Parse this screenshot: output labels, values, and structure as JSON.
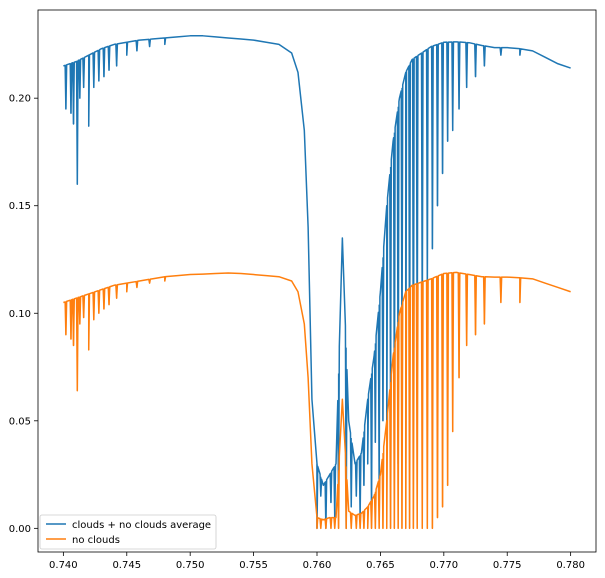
{
  "chart_data": {
    "type": "line",
    "title": "",
    "xlabel": "",
    "ylabel": "",
    "xlim": [
      0.738,
      0.782
    ],
    "ylim": [
      -0.011,
      0.241
    ],
    "xticks": [
      {
        "value": 0.74,
        "label": "0.740"
      },
      {
        "value": 0.745,
        "label": "0.745"
      },
      {
        "value": 0.75,
        "label": "0.750"
      },
      {
        "value": 0.755,
        "label": "0.755"
      },
      {
        "value": 0.76,
        "label": "0.760"
      },
      {
        "value": 0.765,
        "label": "0.765"
      },
      {
        "value": 0.77,
        "label": "0.770"
      },
      {
        "value": 0.775,
        "label": "0.775"
      },
      {
        "value": 0.78,
        "label": "0.780"
      }
    ],
    "yticks": [
      {
        "value": 0.0,
        "label": "0.00"
      },
      {
        "value": 0.05,
        "label": "0.05"
      },
      {
        "value": 0.1,
        "label": "0.10"
      },
      {
        "value": 0.15,
        "label": "0.15"
      },
      {
        "value": 0.2,
        "label": "0.20"
      }
    ],
    "grid": false,
    "legend_position": "lower-left",
    "series": [
      {
        "name": "clouds + no clouds average",
        "color": "#1f77b4",
        "x": [
          0.74,
          0.741,
          0.742,
          0.743,
          0.744,
          0.745,
          0.746,
          0.747,
          0.748,
          0.749,
          0.75,
          0.751,
          0.752,
          0.753,
          0.754,
          0.755,
          0.756,
          0.757,
          0.758,
          0.7585,
          0.759,
          0.7593,
          0.7596,
          0.76,
          0.7605,
          0.761,
          0.7615,
          0.762,
          0.7625,
          0.763,
          0.7635,
          0.764,
          0.7645,
          0.765,
          0.7655,
          0.766,
          0.7665,
          0.767,
          0.7675,
          0.768,
          0.7685,
          0.769,
          0.77,
          0.771,
          0.772,
          0.773,
          0.774,
          0.775,
          0.776,
          0.777,
          0.778,
          0.779,
          0.78
        ],
        "y": [
          0.215,
          0.217,
          0.22,
          0.223,
          0.225,
          0.226,
          0.227,
          0.2275,
          0.228,
          0.2285,
          0.229,
          0.229,
          0.2285,
          0.228,
          0.2275,
          0.227,
          0.226,
          0.225,
          0.221,
          0.212,
          0.185,
          0.14,
          0.06,
          0.03,
          0.02,
          0.025,
          0.03,
          0.135,
          0.05,
          0.03,
          0.035,
          0.06,
          0.08,
          0.11,
          0.15,
          0.18,
          0.2,
          0.212,
          0.218,
          0.22,
          0.222,
          0.224,
          0.226,
          0.2262,
          0.2258,
          0.2245,
          0.2235,
          0.2235,
          0.223,
          0.222,
          0.219,
          0.216,
          0.214
        ],
        "dips_x": [
          0.7402,
          0.7406,
          0.7408,
          0.7411,
          0.7413,
          0.7416,
          0.742,
          0.7424,
          0.7428,
          0.7432,
          0.7436,
          0.7442,
          0.745,
          0.7458,
          0.7468,
          0.748,
          0.76,
          0.7603,
          0.7607,
          0.7611,
          0.7614,
          0.7617,
          0.7623,
          0.7627,
          0.7631,
          0.7634,
          0.7637,
          0.764,
          0.7643,
          0.7646,
          0.7649,
          0.7652,
          0.7655,
          0.7658,
          0.7661,
          0.7664,
          0.7667,
          0.767,
          0.7673,
          0.7676,
          0.7679,
          0.7683,
          0.7687,
          0.7691,
          0.7695,
          0.7699,
          0.7703,
          0.7707,
          0.7712,
          0.7718,
          0.7725,
          0.7732,
          0.7745,
          0.776
        ],
        "dips_y": [
          0.195,
          0.193,
          0.188,
          0.16,
          0.2,
          0.205,
          0.187,
          0.205,
          0.208,
          0.21,
          0.213,
          0.215,
          0.22,
          0.222,
          0.224,
          0.225,
          0.0,
          0.015,
          0.0,
          0.012,
          0.005,
          0.01,
          0.0,
          0.01,
          0.015,
          0.005,
          0.02,
          0.03,
          0.01,
          0.04,
          0.02,
          0.05,
          0.02,
          0.06,
          0.05,
          0.03,
          0.08,
          0.03,
          0.06,
          0.05,
          0.07,
          0.09,
          0.11,
          0.13,
          0.15,
          0.165,
          0.18,
          0.185,
          0.195,
          0.205,
          0.21,
          0.215,
          0.22,
          0.22
        ]
      },
      {
        "name": "no clouds",
        "color": "#ff7f0e",
        "x": [
          0.74,
          0.741,
          0.742,
          0.743,
          0.744,
          0.745,
          0.746,
          0.747,
          0.748,
          0.749,
          0.75,
          0.751,
          0.752,
          0.753,
          0.754,
          0.755,
          0.756,
          0.757,
          0.758,
          0.7585,
          0.759,
          0.7593,
          0.7596,
          0.76,
          0.7605,
          0.761,
          0.7615,
          0.762,
          0.7625,
          0.763,
          0.7635,
          0.764,
          0.7645,
          0.765,
          0.7655,
          0.766,
          0.7665,
          0.767,
          0.7675,
          0.768,
          0.7685,
          0.769,
          0.77,
          0.771,
          0.772,
          0.773,
          0.774,
          0.775,
          0.776,
          0.777,
          0.778,
          0.779,
          0.78
        ],
        "y": [
          0.105,
          0.107,
          0.109,
          0.111,
          0.113,
          0.114,
          0.115,
          0.116,
          0.117,
          0.1175,
          0.118,
          0.1182,
          0.1185,
          0.1187,
          0.1185,
          0.118,
          0.1175,
          0.117,
          0.115,
          0.11,
          0.095,
          0.07,
          0.03,
          0.005,
          0.004,
          0.005,
          0.005,
          0.06,
          0.008,
          0.006,
          0.007,
          0.01,
          0.015,
          0.025,
          0.05,
          0.08,
          0.1,
          0.11,
          0.113,
          0.114,
          0.115,
          0.116,
          0.1185,
          0.119,
          0.118,
          0.117,
          0.1168,
          0.1168,
          0.1165,
          0.116,
          0.114,
          0.112,
          0.11
        ],
        "dips_x": [
          0.7402,
          0.7406,
          0.7408,
          0.7411,
          0.7413,
          0.7416,
          0.742,
          0.7424,
          0.7428,
          0.7432,
          0.7436,
          0.7442,
          0.745,
          0.7458,
          0.7468,
          0.748,
          0.76,
          0.7603,
          0.7607,
          0.7611,
          0.7614,
          0.7617,
          0.7623,
          0.7627,
          0.7631,
          0.7634,
          0.7637,
          0.764,
          0.7643,
          0.7646,
          0.7649,
          0.7652,
          0.7655,
          0.7658,
          0.7661,
          0.7664,
          0.7667,
          0.767,
          0.7673,
          0.7676,
          0.7679,
          0.7683,
          0.7687,
          0.7691,
          0.7695,
          0.7699,
          0.7703,
          0.7707,
          0.7712,
          0.7718,
          0.7725,
          0.7732,
          0.7745,
          0.776
        ],
        "dips_y": [
          0.09,
          0.088,
          0.085,
          0.064,
          0.095,
          0.098,
          0.083,
          0.097,
          0.1,
          0.102,
          0.104,
          0.107,
          0.11,
          0.112,
          0.114,
          0.115,
          0.0,
          0.0,
          0.0,
          0.0,
          0.0,
          0.0,
          0.0,
          0.0,
          0.0,
          0.0,
          0.0,
          0.0,
          0.0,
          0.0,
          0.0,
          0.0,
          0.0,
          0.0,
          0.0,
          0.0,
          0.0,
          0.0,
          0.0,
          0.0,
          0.0,
          0.0,
          0.0,
          0.0,
          0.005,
          0.01,
          0.02,
          0.045,
          0.07,
          0.085,
          0.09,
          0.095,
          0.105,
          0.105
        ]
      }
    ]
  }
}
